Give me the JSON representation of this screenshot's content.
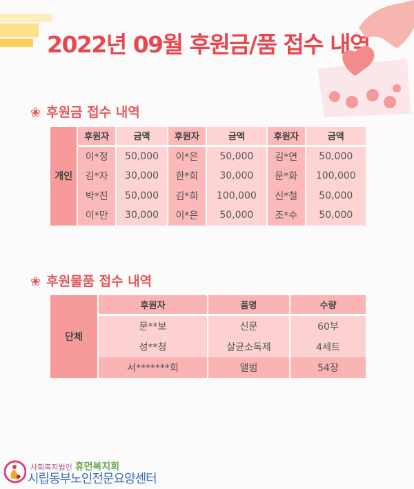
{
  "title": "2022년 09월 후원금/품 접수 내역",
  "colors": {
    "title": "#e8474f",
    "left_cell": "#f79a9a",
    "name_cell": "#fbb9b9",
    "amount_cell": "#fdd3d3"
  },
  "section1": {
    "icon": "flower-icon",
    "heading": "후원금 접수 내역"
  },
  "money_table": {
    "group": "개인",
    "headers": [
      "후원자",
      "금액",
      "후원자",
      "금액",
      "후원자",
      "금액"
    ],
    "rows": [
      [
        "이*정",
        "50,000",
        "이*은",
        "50,000",
        "김*연",
        "50,000"
      ],
      [
        "김*자",
        "30,000",
        "한*희",
        "30,000",
        "문*화",
        "100,000"
      ],
      [
        "박*진",
        "50,000",
        "김*희",
        "100,000",
        "신*철",
        "50,000"
      ],
      [
        "이*만",
        "30,000",
        "이*은",
        "50,000",
        "조*수",
        "50,000"
      ]
    ]
  },
  "section2": {
    "icon": "flower-icon",
    "heading": "후원물품 접수 내역"
  },
  "goods_table": {
    "group": "단체",
    "headers": [
      "후원자",
      "품명",
      "수량"
    ],
    "rows": [
      [
        "문**보",
        "신문",
        "60부"
      ],
      [
        "성**청",
        "살균소독제",
        "4세트"
      ],
      [
        "서*******회",
        "앨범",
        "54장"
      ]
    ]
  },
  "logo": {
    "line1": "사회복지법인",
    "brand": "휴먼복지회",
    "line2": "시립동부노인전문요양센터"
  }
}
